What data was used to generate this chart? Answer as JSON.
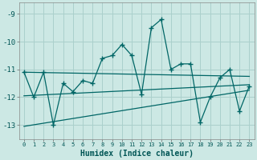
{
  "xlabel": "Humidex (Indice chaleur)",
  "background_color": "#cce8e4",
  "grid_color": "#aad0cc",
  "line_color": "#006666",
  "xlim": [
    -0.5,
    23.5
  ],
  "ylim": [
    -13.5,
    -8.6
  ],
  "yticks": [
    -13,
    -12,
    -11,
    -10,
    -9
  ],
  "xticks": [
    0,
    1,
    2,
    3,
    4,
    5,
    6,
    7,
    8,
    9,
    10,
    11,
    12,
    13,
    14,
    15,
    16,
    17,
    18,
    19,
    20,
    21,
    22,
    23
  ],
  "main_x": [
    0,
    1,
    2,
    3,
    4,
    5,
    6,
    7,
    8,
    9,
    10,
    11,
    12,
    13,
    14,
    15,
    16,
    17,
    18,
    19,
    20,
    21,
    22,
    23
  ],
  "main_y": [
    -11.1,
    -12.0,
    -11.1,
    -13.0,
    -11.5,
    -11.8,
    -11.4,
    -11.5,
    -10.6,
    -10.5,
    -10.1,
    -10.5,
    -11.9,
    -9.5,
    -9.2,
    -11.0,
    -10.8,
    -10.8,
    -12.9,
    -12.0,
    -11.3,
    -11.0,
    -12.5,
    -11.6
  ],
  "trend1_x": [
    0,
    23
  ],
  "trend1_y": [
    -11.1,
    -11.25
  ],
  "trend2_x": [
    0,
    23
  ],
  "trend2_y": [
    -11.95,
    -11.55
  ],
  "trend3_x": [
    0,
    23
  ],
  "trend3_y": [
    -13.05,
    -11.75
  ]
}
